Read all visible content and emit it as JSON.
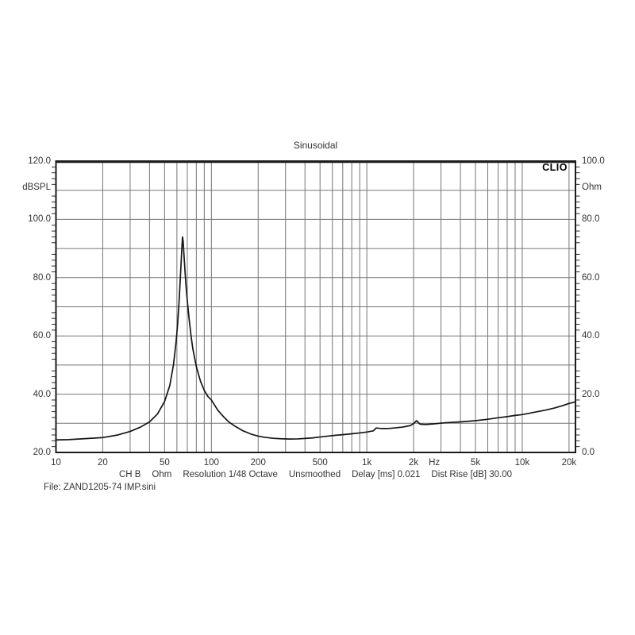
{
  "title": "Sinusoidal",
  "branding": {
    "logo": "CLIO"
  },
  "axes": {
    "left": {
      "unit": "dBSPL",
      "labels": [
        "120.0",
        "100.0",
        "80.0",
        "60.0",
        "40.0",
        "20.0"
      ]
    },
    "right": {
      "unit": "Ohm",
      "labels": [
        "100.0",
        "80.0",
        "60.0",
        "40.0",
        "20.0",
        "0.0"
      ]
    },
    "bottom": {
      "unit": "Hz"
    }
  },
  "status_line": {
    "segments": [
      "CH B",
      "Ohm",
      "Resolution 1/48 Octave",
      "Unsmoothed",
      "Delay [ms] 0.021",
      "Dist Rise [dB] 30.00"
    ]
  },
  "file_line": "File: ZAND1205-74 IMP.sini",
  "colors": {
    "background": "#ffffff",
    "grid": "#757575",
    "border": "#1c1c1c",
    "curve": "#151515",
    "tick": "#2a2a2a",
    "text": "#333333"
  },
  "chart_data": {
    "type": "line",
    "title": "Sinusoidal",
    "x_axis": {
      "scale": "log",
      "unit": "Hz",
      "min": 10,
      "max": 22000,
      "tick_values": [
        10,
        20,
        50,
        100,
        200,
        500,
        1000,
        2000,
        5000,
        10000,
        20000
      ],
      "tick_labels": [
        "10",
        "20",
        "50",
        "100",
        "200",
        "500",
        "1k",
        "2k",
        "5k",
        "10k",
        "20k"
      ]
    },
    "y_axis_left": {
      "label": "dBSPL",
      "min": 20,
      "max": 120,
      "label_step": 20,
      "grid_step": 10
    },
    "y_axis_right": {
      "label": "Ohm",
      "min": 0,
      "max": 100,
      "label_step": 20,
      "grid_step": 10
    },
    "grid": true,
    "legend": false,
    "series": [
      {
        "name": "Impedance magnitude (read on right Ohm axis)",
        "axis": "right",
        "x": [
          10,
          12,
          15,
          20,
          25,
          30,
          35,
          40,
          45,
          50,
          54,
          57,
          59,
          60,
          61,
          62,
          63,
          64,
          64.7,
          65.2,
          65.8,
          66.5,
          67.5,
          68.5,
          70,
          72,
          74,
          76,
          80,
          85,
          90,
          95,
          100,
          110,
          120,
          130,
          140,
          160,
          180,
          200,
          220,
          250,
          280,
          320,
          360,
          400,
          450,
          500,
          560,
          630,
          700,
          800,
          900,
          1000,
          1100,
          1150,
          1250,
          1350,
          1500,
          1700,
          1900,
          2000,
          2090,
          2200,
          2400,
          2700,
          3200,
          4000,
          5000,
          6000,
          7000,
          8000,
          9000,
          10000,
          11000,
          12000,
          14000,
          16000,
          18000,
          20000,
          22000
        ],
        "y": [
          4.3,
          4.4,
          4.7,
          5.1,
          6.0,
          7.2,
          8.7,
          10.5,
          13.2,
          17.5,
          23,
          30,
          37,
          41,
          46,
          52,
          59,
          66,
          71,
          74,
          72.5,
          68.5,
          63,
          58,
          52,
          45.5,
          40,
          35.5,
          29.5,
          24.5,
          21.3,
          19.2,
          18.0,
          14.5,
          12.2,
          10.4,
          9.2,
          7.4,
          6.3,
          5.6,
          5.2,
          4.85,
          4.7,
          4.6,
          4.65,
          4.8,
          5.0,
          5.3,
          5.6,
          5.9,
          6.1,
          6.4,
          6.7,
          7.0,
          7.4,
          8.4,
          8.2,
          8.2,
          8.4,
          8.7,
          9.2,
          9.9,
          10.9,
          9.7,
          9.6,
          9.8,
          10.2,
          10.5,
          10.9,
          11.4,
          11.9,
          12.3,
          12.7,
          13.0,
          13.4,
          13.8,
          14.5,
          15.2,
          16.0,
          16.8,
          17.4
        ]
      }
    ]
  }
}
